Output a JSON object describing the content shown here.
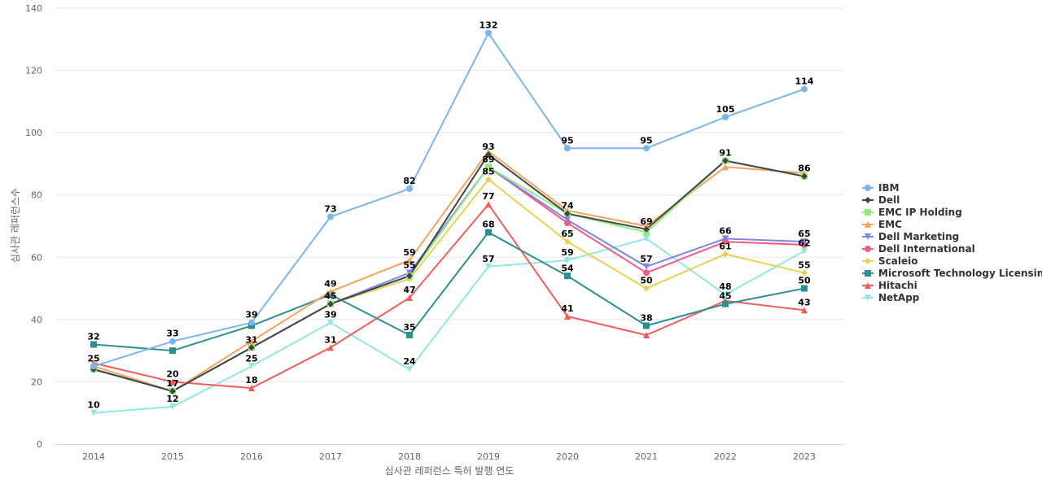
{
  "chart_data": {
    "type": "line",
    "title": "",
    "xlabel": "심사관 레퍼런스 특허 발행 연도",
    "ylabel": "심사관 레퍼런스수",
    "ylim": [
      0,
      140
    ],
    "yticks": [
      0,
      20,
      40,
      60,
      80,
      100,
      120,
      140
    ],
    "grid": true,
    "legend_position": "right",
    "categories": [
      "2014",
      "2015",
      "2016",
      "2017",
      "2018",
      "2019",
      "2020",
      "2021",
      "2022",
      "2023"
    ],
    "series": [
      {
        "name": "IBM",
        "color": "#7cb5ec",
        "marker": "circle",
        "values": [
          25,
          33,
          39,
          73,
          82,
          132,
          95,
          95,
          105,
          114
        ]
      },
      {
        "name": "Dell",
        "color": "#434348",
        "marker": "diamond",
        "values": [
          24,
          17,
          31,
          45,
          54,
          93,
          74,
          69,
          91,
          86
        ]
      },
      {
        "name": "EMC IP Holding",
        "color": "#90ed7d",
        "marker": "square",
        "values": [
          24,
          17,
          31,
          45,
          54,
          89,
          74,
          68,
          91,
          86
        ]
      },
      {
        "name": "EMC",
        "color": "#f7a35c",
        "marker": "triangle",
        "values": [
          25,
          17,
          33,
          49,
          59,
          94,
          75,
          70,
          89,
          87
        ]
      },
      {
        "name": "Dell Marketing",
        "color": "#8085e9",
        "marker": "triangle-down",
        "values": [
          24,
          17,
          31,
          45,
          55,
          89,
          72,
          57,
          66,
          65
        ]
      },
      {
        "name": "Dell International",
        "color": "#f15c80",
        "marker": "circle",
        "values": [
          24,
          17,
          31,
          45,
          54,
          89,
          71,
          55,
          65,
          64
        ]
      },
      {
        "name": "Scaleio",
        "color": "#e4d354",
        "marker": "diamond",
        "values": [
          24,
          17,
          31,
          45,
          53,
          85,
          65,
          50,
          61,
          55
        ]
      },
      {
        "name": "Microsoft Technology Licensing",
        "color": "#2b908f",
        "marker": "square",
        "values": [
          32,
          30,
          38,
          48,
          35,
          68,
          54,
          38,
          45,
          50
        ]
      },
      {
        "name": "Hitachi",
        "color": "#f45b5b",
        "marker": "triangle",
        "values": [
          26,
          20,
          18,
          31,
          47,
          77,
          41,
          35,
          46,
          43
        ]
      },
      {
        "name": "NetApp",
        "color": "#91e8e1",
        "marker": "triangle-down",
        "values": [
          10,
          12,
          25,
          39,
          24,
          57,
          59,
          66,
          48,
          62
        ]
      }
    ],
    "data_labels": [
      {
        "year": "2014",
        "value": 32,
        "text": "32"
      },
      {
        "year": "2014",
        "value": 25,
        "text": "25"
      },
      {
        "year": "2014",
        "value": 10,
        "text": "10"
      },
      {
        "year": "2015",
        "value": 33,
        "text": "33"
      },
      {
        "year": "2015",
        "value": 20,
        "text": "20"
      },
      {
        "year": "2015",
        "value": 17,
        "text": "17"
      },
      {
        "year": "2015",
        "value": 12,
        "text": "12"
      },
      {
        "year": "2016",
        "value": 39,
        "text": "39"
      },
      {
        "year": "2016",
        "value": 31,
        "text": "31"
      },
      {
        "year": "2016",
        "value": 25,
        "text": "25"
      },
      {
        "year": "2016",
        "value": 18,
        "text": "18"
      },
      {
        "year": "2017",
        "value": 73,
        "text": "73"
      },
      {
        "year": "2017",
        "value": 49,
        "text": "49"
      },
      {
        "year": "2017",
        "value": 45,
        "text": "45"
      },
      {
        "year": "2017",
        "value": 39,
        "text": "39"
      },
      {
        "year": "2017",
        "value": 31,
        "text": "31"
      },
      {
        "year": "2018",
        "value": 82,
        "text": "82"
      },
      {
        "year": "2018",
        "value": 59,
        "text": "59"
      },
      {
        "year": "2018",
        "value": 55,
        "text": "55"
      },
      {
        "year": "2018",
        "value": 47,
        "text": "47"
      },
      {
        "year": "2018",
        "value": 35,
        "text": "35"
      },
      {
        "year": "2018",
        "value": 24,
        "text": "24"
      },
      {
        "year": "2019",
        "value": 132,
        "text": "132"
      },
      {
        "year": "2019",
        "value": 93,
        "text": "93"
      },
      {
        "year": "2019",
        "value": 89,
        "text": "89"
      },
      {
        "year": "2019",
        "value": 85,
        "text": "85"
      },
      {
        "year": "2019",
        "value": 77,
        "text": "77"
      },
      {
        "year": "2019",
        "value": 68,
        "text": "68"
      },
      {
        "year": "2019",
        "value": 57,
        "text": "57"
      },
      {
        "year": "2020",
        "value": 95,
        "text": "95"
      },
      {
        "year": "2020",
        "value": 74,
        "text": "74"
      },
      {
        "year": "2020",
        "value": 65,
        "text": "65"
      },
      {
        "year": "2020",
        "value": 59,
        "text": "59"
      },
      {
        "year": "2020",
        "value": 54,
        "text": "54"
      },
      {
        "year": "2020",
        "value": 41,
        "text": "41"
      },
      {
        "year": "2021",
        "value": 95,
        "text": "95"
      },
      {
        "year": "2021",
        "value": 69,
        "text": "69"
      },
      {
        "year": "2021",
        "value": 57,
        "text": "57"
      },
      {
        "year": "2021",
        "value": 50,
        "text": "50"
      },
      {
        "year": "2021",
        "value": 38,
        "text": "38"
      },
      {
        "year": "2022",
        "value": 105,
        "text": "105"
      },
      {
        "year": "2022",
        "value": 91,
        "text": "91"
      },
      {
        "year": "2022",
        "value": 66,
        "text": "66"
      },
      {
        "year": "2022",
        "value": 61,
        "text": "61"
      },
      {
        "year": "2022",
        "value": 48,
        "text": "48"
      },
      {
        "year": "2022",
        "value": 45,
        "text": "45"
      },
      {
        "year": "2023",
        "value": 114,
        "text": "114"
      },
      {
        "year": "2023",
        "value": 86,
        "text": "86"
      },
      {
        "year": "2023",
        "value": 65,
        "text": "65"
      },
      {
        "year": "2023",
        "value": 62,
        "text": "62"
      },
      {
        "year": "2023",
        "value": 55,
        "text": "55"
      },
      {
        "year": "2023",
        "value": 50,
        "text": "50"
      },
      {
        "year": "2023",
        "value": 43,
        "text": "43"
      }
    ]
  }
}
